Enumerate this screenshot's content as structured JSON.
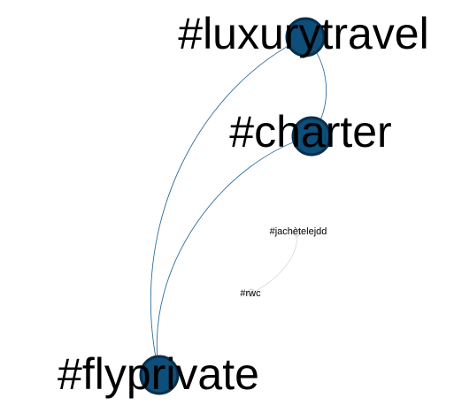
{
  "graph": {
    "nodes": [
      {
        "id": "luxurytravel",
        "label": "#luxurytravel"
      },
      {
        "id": "charter",
        "label": "#charter"
      },
      {
        "id": "flyprivate",
        "label": "#flyprivate"
      },
      {
        "id": "jachetelejdd",
        "label": "#jachètelejdd"
      },
      {
        "id": "rwc",
        "label": "#rwc"
      }
    ],
    "edges": [
      {
        "source": "luxurytravel",
        "target": "charter"
      },
      {
        "source": "luxurytravel",
        "target": "flyprivate"
      },
      {
        "source": "charter",
        "target": "flyprivate"
      },
      {
        "source": "jachetelejdd",
        "target": "rwc"
      }
    ],
    "colors": {
      "major_node": "#0d4e7a",
      "major_edge": "#2f6f9a",
      "minor_edge": "#dcdcdc"
    }
  }
}
